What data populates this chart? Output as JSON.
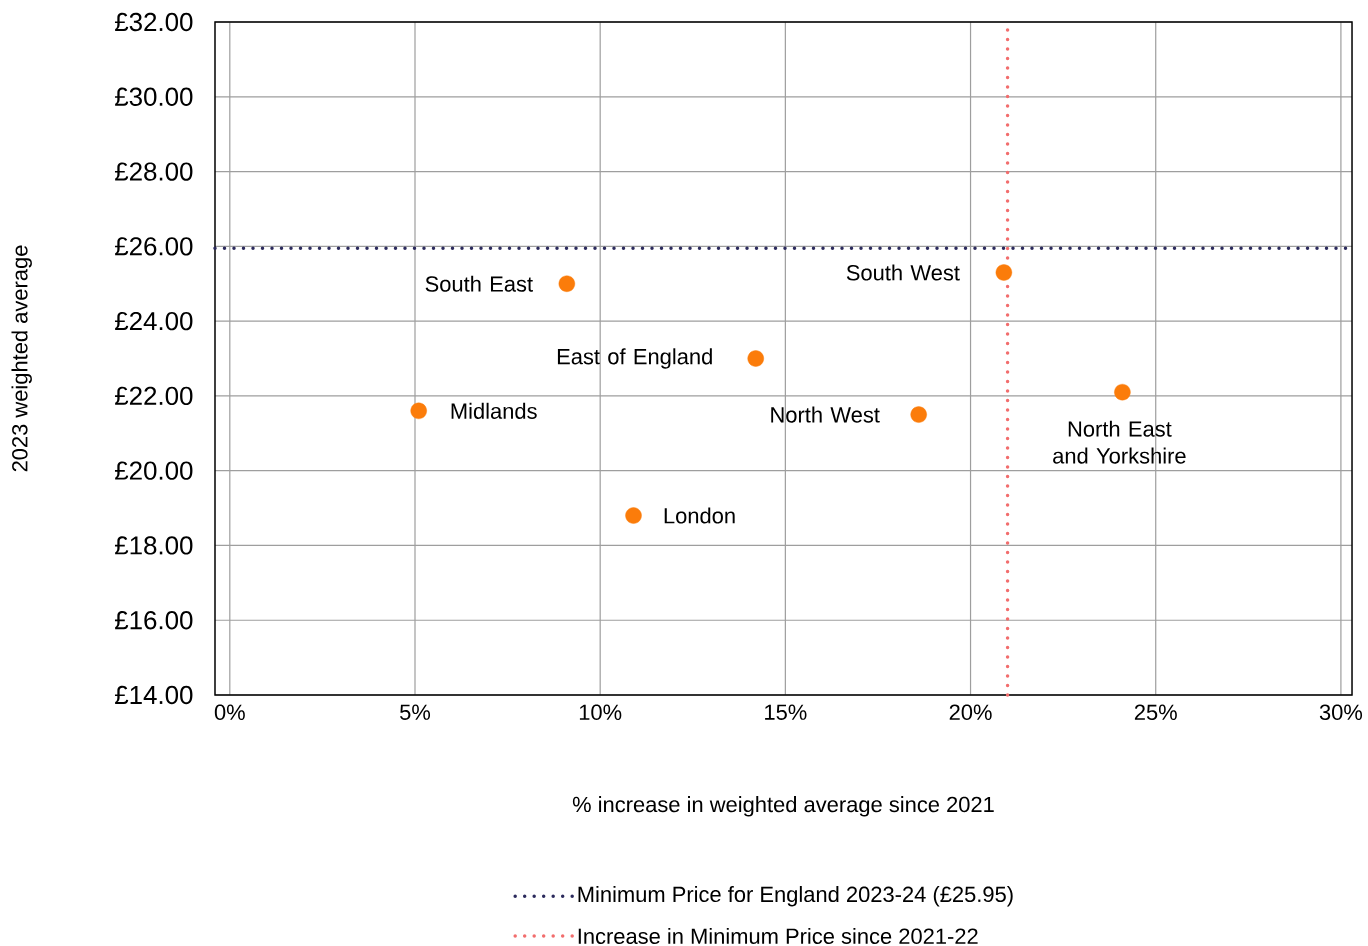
{
  "chart_data": {
    "type": "scatter",
    "xlabel": "% increase in weighted average since 2021",
    "ylabel": "2023 weighted average",
    "x": [
      9.1,
      20.9,
      14.2,
      24.1,
      5.1,
      18.6,
      10.9
    ],
    "series": [
      {
        "color": "#fb7c0a",
        "values": [
          25.0,
          25.3,
          23.0,
          22.1,
          21.6,
          21.5,
          18.8
        ]
      }
    ],
    "marker": "circle",
    "xlim": [
      -0.4,
      30.3
    ],
    "ylim": [
      14,
      32
    ],
    "xticks": [
      {
        "value": 0,
        "label": "0%"
      },
      {
        "value": 5,
        "label": "5%"
      },
      {
        "value": 10,
        "label": "10%"
      },
      {
        "value": 15,
        "label": "15%"
      },
      {
        "value": 20,
        "label": "20%"
      },
      {
        "value": 25,
        "label": "25%"
      },
      {
        "value": 30,
        "label": "30%"
      }
    ],
    "yticks": [
      {
        "value": 14,
        "label": "£14.00"
      },
      {
        "value": 16,
        "label": "£16.00"
      },
      {
        "value": 18,
        "label": "£18.00"
      },
      {
        "value": 20,
        "label": "£20.00"
      },
      {
        "value": 22,
        "label": "£22.00"
      },
      {
        "value": 24,
        "label": "£24.00"
      },
      {
        "value": 26,
        "label": "£26.00"
      },
      {
        "value": 28,
        "label": "£28.00"
      },
      {
        "value": 30,
        "label": "£30.00"
      },
      {
        "value": 32,
        "label": "£32.00"
      }
    ],
    "grid": true,
    "ref_lines": [
      {
        "axis": "y",
        "value": 25.95,
        "label": "Minimum Price for England 2023-24 (£25.95)",
        "color": "#2b2a5c",
        "line_style": "dotted"
      },
      {
        "axis": "x",
        "value": 21,
        "label": "Increase in Minimum Price since 2021-22",
        "color": "#f26d6d",
        "line_style": "dotted"
      }
    ],
    "legend": "bottom",
    "annotations": [
      "South East",
      "South West",
      "East of England",
      "North East and Yorkshire",
      "Midlands",
      "North West",
      "London"
    ]
  }
}
